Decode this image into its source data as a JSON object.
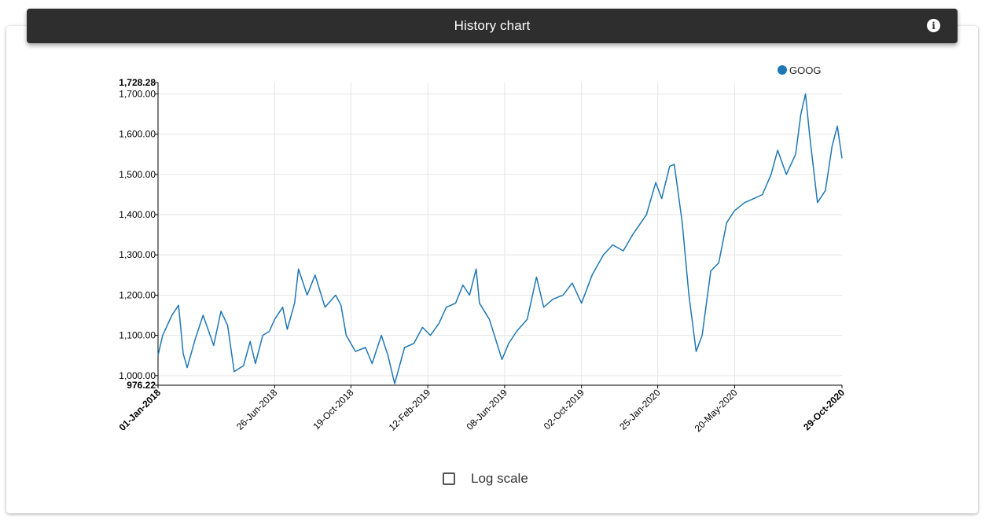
{
  "header": {
    "title": "History chart",
    "info_icon": "info-icon"
  },
  "controls": {
    "log_scale_label": "Log scale",
    "log_scale_checked": false
  },
  "chart_data": {
    "type": "line",
    "legend_position": "top-right",
    "grid": true,
    "ylim": [
      976.22,
      1728.28
    ],
    "y_ticks": [
      "976.22",
      "1,000.00",
      "1,100.00",
      "1,200.00",
      "1,300.00",
      "1,400.00",
      "1,500.00",
      "1,600.00",
      "1,700.00",
      "1,728.28"
    ],
    "x_ticks": [
      "01-Jan-2018",
      "26-Jun-2018",
      "19-Oct-2018",
      "12-Feb-2019",
      "08-Jun-2019",
      "02-Oct-2019",
      "25-Jan-2020",
      "20-May-2020",
      "29-Oct-2020"
    ],
    "series": [
      {
        "name": "GOOG",
        "color": "#1f77b4",
        "points": [
          [
            "2018-01-01",
            1050
          ],
          [
            "2018-01-08",
            1100
          ],
          [
            "2018-01-22",
            1150
          ],
          [
            "2018-02-01",
            1175
          ],
          [
            "2018-02-08",
            1055
          ],
          [
            "2018-02-14",
            1020
          ],
          [
            "2018-02-26",
            1090
          ],
          [
            "2018-03-10",
            1150
          ],
          [
            "2018-03-26",
            1075
          ],
          [
            "2018-04-06",
            1160
          ],
          [
            "2018-04-16",
            1125
          ],
          [
            "2018-04-26",
            1010
          ],
          [
            "2018-05-10",
            1025
          ],
          [
            "2018-05-20",
            1085
          ],
          [
            "2018-05-28",
            1030
          ],
          [
            "2018-06-08",
            1100
          ],
          [
            "2018-06-18",
            1110
          ],
          [
            "2018-06-26",
            1140
          ],
          [
            "2018-07-08",
            1170
          ],
          [
            "2018-07-15",
            1115
          ],
          [
            "2018-07-26",
            1180
          ],
          [
            "2018-08-01",
            1265
          ],
          [
            "2018-08-14",
            1200
          ],
          [
            "2018-08-26",
            1250
          ],
          [
            "2018-09-10",
            1170
          ],
          [
            "2018-09-26",
            1200
          ],
          [
            "2018-10-04",
            1175
          ],
          [
            "2018-10-12",
            1100
          ],
          [
            "2018-10-26",
            1060
          ],
          [
            "2018-11-10",
            1070
          ],
          [
            "2018-11-20",
            1030
          ],
          [
            "2018-12-04",
            1100
          ],
          [
            "2018-12-14",
            1050
          ],
          [
            "2018-12-24",
            980
          ],
          [
            "2019-01-08",
            1070
          ],
          [
            "2019-01-22",
            1080
          ],
          [
            "2019-02-04",
            1120
          ],
          [
            "2019-02-16",
            1100
          ],
          [
            "2019-03-01",
            1130
          ],
          [
            "2019-03-12",
            1170
          ],
          [
            "2019-03-26",
            1180
          ],
          [
            "2019-04-06",
            1225
          ],
          [
            "2019-04-16",
            1200
          ],
          [
            "2019-04-26",
            1265
          ],
          [
            "2019-05-01",
            1180
          ],
          [
            "2019-05-16",
            1140
          ],
          [
            "2019-06-04",
            1040
          ],
          [
            "2019-06-14",
            1080
          ],
          [
            "2019-06-26",
            1110
          ],
          [
            "2019-07-12",
            1140
          ],
          [
            "2019-07-26",
            1245
          ],
          [
            "2019-08-06",
            1170
          ],
          [
            "2019-08-20",
            1190
          ],
          [
            "2019-09-04",
            1200
          ],
          [
            "2019-09-18",
            1230
          ],
          [
            "2019-10-02",
            1180
          ],
          [
            "2019-10-18",
            1250
          ],
          [
            "2019-11-04",
            1300
          ],
          [
            "2019-11-18",
            1325
          ],
          [
            "2019-12-04",
            1310
          ],
          [
            "2019-12-18",
            1350
          ],
          [
            "2020-01-08",
            1400
          ],
          [
            "2020-01-22",
            1480
          ],
          [
            "2020-01-31",
            1440
          ],
          [
            "2020-02-12",
            1520
          ],
          [
            "2020-02-19",
            1525
          ],
          [
            "2020-03-02",
            1380
          ],
          [
            "2020-03-12",
            1200
          ],
          [
            "2020-03-23",
            1060
          ],
          [
            "2020-04-01",
            1100
          ],
          [
            "2020-04-14",
            1260
          ],
          [
            "2020-04-26",
            1280
          ],
          [
            "2020-05-08",
            1380
          ],
          [
            "2020-05-20",
            1410
          ],
          [
            "2020-06-04",
            1430
          ],
          [
            "2020-06-18",
            1440
          ],
          [
            "2020-07-01",
            1450
          ],
          [
            "2020-07-14",
            1500
          ],
          [
            "2020-07-24",
            1560
          ],
          [
            "2020-08-06",
            1500
          ],
          [
            "2020-08-20",
            1550
          ],
          [
            "2020-08-28",
            1650
          ],
          [
            "2020-09-04",
            1700
          ],
          [
            "2020-09-10",
            1600
          ],
          [
            "2020-09-22",
            1430
          ],
          [
            "2020-10-04",
            1460
          ],
          [
            "2020-10-14",
            1570
          ],
          [
            "2020-10-22",
            1620
          ],
          [
            "2020-10-29",
            1540
          ]
        ]
      }
    ]
  }
}
